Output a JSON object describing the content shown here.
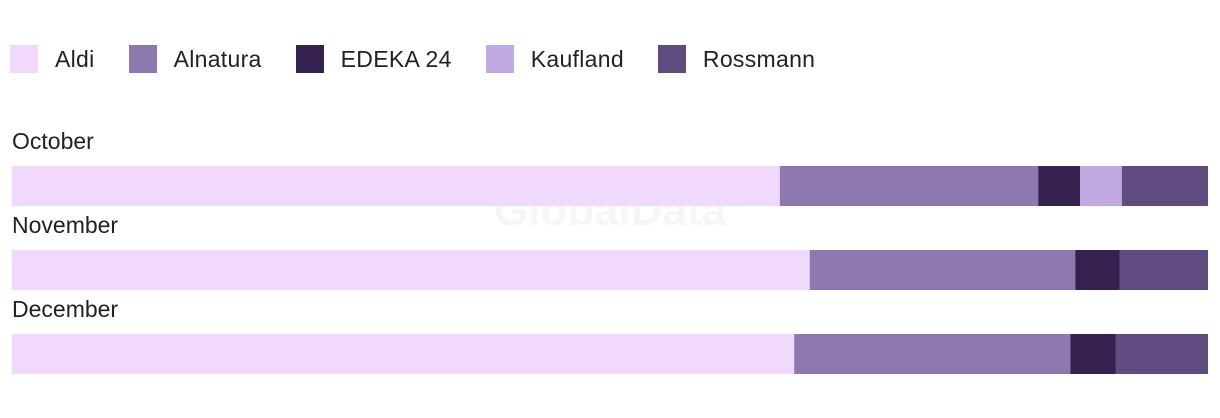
{
  "colors": {
    "Aldi": "#f0d9fc",
    "Alnatura": "#8e78b0",
    "EDEKA 24": "#35214f",
    "Kaufland": "#c1a8e0",
    "Rossmann": "#604c80"
  },
  "legend": [
    {
      "label": "Aldi",
      "color": "#f0d9fc"
    },
    {
      "label": "Alnatura",
      "color": "#8e78b0"
    },
    {
      "label": "EDEKA 24",
      "color": "#35214f"
    },
    {
      "label": "Kaufland",
      "color": "#c1a8e0"
    },
    {
      "label": "Rossmann",
      "color": "#604c80"
    }
  ],
  "watermark": "GlobalData",
  "chart_data": {
    "type": "bar",
    "orientation": "horizontal",
    "stacked": true,
    "normalized": true,
    "categories": [
      "October",
      "November",
      "December"
    ],
    "series": [
      {
        "name": "Aldi",
        "values": [
          64.2,
          66.7,
          65.4
        ]
      },
      {
        "name": "Alnatura",
        "values": [
          21.6,
          22.2,
          23.1
        ]
      },
      {
        "name": "EDEKA 24",
        "values": [
          3.5,
          3.7,
          3.8
        ]
      },
      {
        "name": "Kaufland",
        "values": [
          3.5,
          0,
          0
        ]
      },
      {
        "name": "Rossmann",
        "values": [
          7.2,
          7.4,
          7.7
        ]
      }
    ],
    "title": "",
    "xlabel": "",
    "ylabel": "",
    "legend_position": "top-left",
    "grid": false
  }
}
